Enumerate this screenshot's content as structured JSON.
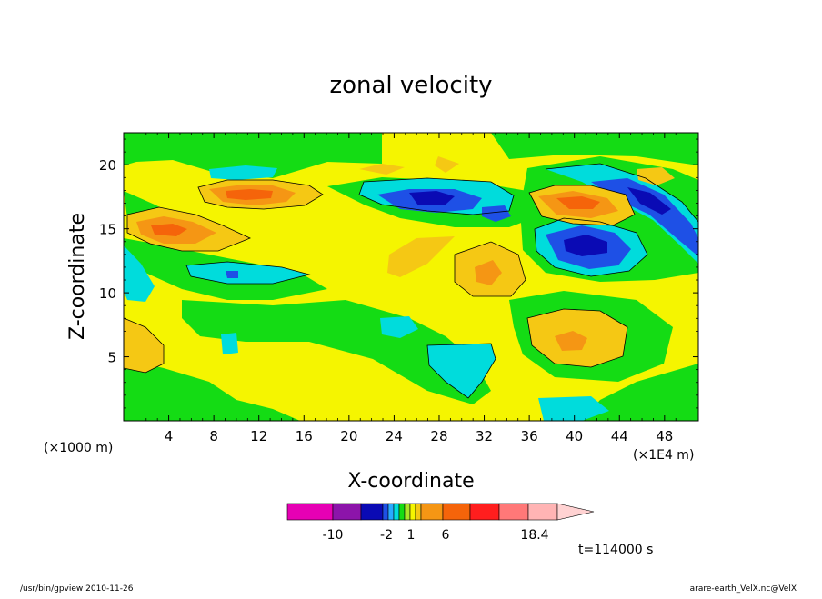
{
  "chart_data": {
    "type": "heatmap",
    "title": "zonal velocity",
    "xlabel": "X-coordinate",
    "ylabel": "Z-coordinate",
    "x_unit_left": "(×1000 m)",
    "x_unit_right": "(×1E4 m)",
    "xticks": [
      "4",
      "8",
      "12",
      "16",
      "20",
      "24",
      "28",
      "32",
      "36",
      "40",
      "44",
      "48"
    ],
    "yticks": [
      "5",
      "10",
      "15",
      "20"
    ],
    "xlim": [
      0,
      51
    ],
    "ylim": [
      0,
      22.5
    ],
    "colorbar": {
      "levels_colors": [
        "#e600b4",
        "#8c14aa",
        "#0a0ab4",
        "#1e50e6",
        "#28aaff",
        "#00dcdc",
        "#14dc14",
        "#aae628",
        "#f5f500",
        "#f5c814",
        "#f59614",
        "#f5640a",
        "#ff1e1e",
        "#ff7878",
        "#ffb4b4"
      ],
      "labels": [
        "-10",
        "-2",
        "1",
        "6",
        "18.4"
      ]
    },
    "features": [
      {
        "label": "background",
        "level": 0
      },
      {
        "label": "positive-core",
        "x": 40.5,
        "z": 6.3,
        "value": 6
      },
      {
        "label": "positive-core",
        "x": 40.0,
        "z": 17.0,
        "value": 9
      },
      {
        "label": "positive-core",
        "x": 11.5,
        "z": 17.8,
        "value": 9
      },
      {
        "label": "positive-core",
        "x": 4.0,
        "z": 15.0,
        "value": 7
      },
      {
        "label": "positive-core",
        "x": 28.5,
        "z": 11.5,
        "value": 5
      },
      {
        "label": "negative-core",
        "x": 41.0,
        "z": 14.0,
        "value": -6
      },
      {
        "label": "negative-core",
        "x": 27.5,
        "z": 17.5,
        "value": -5
      },
      {
        "label": "negative-core",
        "x": 46.0,
        "z": 17.0,
        "value": -5
      }
    ]
  },
  "footer": {
    "time_label": "t=114000 s",
    "left_note": "/usr/bin/gpview   2010-11-26",
    "right_note": "arare-earth_VelX.nc@VelX"
  }
}
